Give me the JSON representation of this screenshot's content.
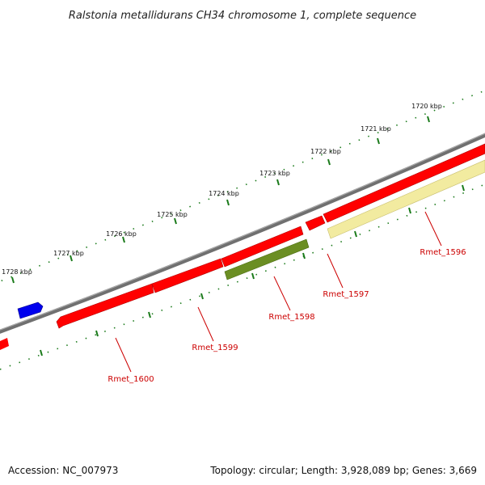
{
  "title": "Ralstonia metallidurans CH34 chromosome 1, complete sequence",
  "footer": {
    "accession": "Accession: NC_007973",
    "summary": "Topology: circular; Length: 3,928,089 bp; Genes: 3,669"
  },
  "ticks": [
    "1720 kbp",
    "1721 kbp",
    "1722 kbp",
    "1723 kbp",
    "1724 kbp",
    "1725 kbp",
    "1726 kbp",
    "1727 kbp",
    "1728 kbp"
  ],
  "genes": [
    {
      "name": "Rmet_1596",
      "color": "#f2eba0"
    },
    {
      "name": "Rmet_1597",
      "color": "#ff0000"
    },
    {
      "name": "Rmet_1598",
      "color": "#6b8e23"
    },
    {
      "name": "Rmet_1599",
      "color": "#ff0000"
    },
    {
      "name": "Rmet_1600",
      "color": "#ff0000"
    }
  ],
  "colors": {
    "backbone": "#808080",
    "tick": "#1a7a1a",
    "forward_gene": "#0000ff",
    "label": "#cc0000"
  }
}
